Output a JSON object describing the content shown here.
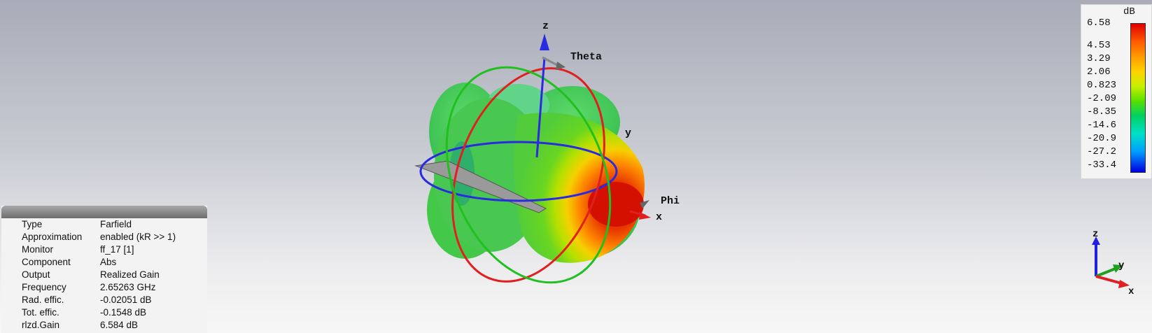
{
  "plot": {
    "axis_z": "z",
    "axis_x": "x",
    "axis_y": "y",
    "theta_label": "Theta",
    "phi_label": "Phi"
  },
  "legend": {
    "unit": "dB",
    "values": [
      "6.58",
      "4.53",
      "3.29",
      "2.06",
      "0.823",
      "-2.09",
      "-8.35",
      "-14.6",
      "-20.9",
      "-27.2",
      "-33.4"
    ]
  },
  "info": [
    {
      "label": "Type",
      "value": "Farfield"
    },
    {
      "label": "Approximation",
      "value": "enabled (kR >> 1)"
    },
    {
      "label": "Monitor",
      "value": "ff_17 [1]"
    },
    {
      "label": "Component",
      "value": "Abs"
    },
    {
      "label": "Output",
      "value": "Realized Gain"
    },
    {
      "label": "Frequency",
      "value": "2.65263 GHz"
    },
    {
      "label": "Rad. effic.",
      "value": "-0.02051 dB"
    },
    {
      "label": "Tot. effic.",
      "value": "-0.1548 dB"
    },
    {
      "label": "rlzd.Gain",
      "value": "6.584 dB"
    }
  ],
  "triad": {
    "z": "z",
    "y": "y",
    "x": "x"
  },
  "colors": {
    "theta_ring": "#e02020",
    "phi_ring": "#2a2ae0",
    "meridian_ring": "#20c020",
    "triad_z": "#2020e0",
    "triad_y": "#20a020",
    "triad_x": "#e02020"
  }
}
